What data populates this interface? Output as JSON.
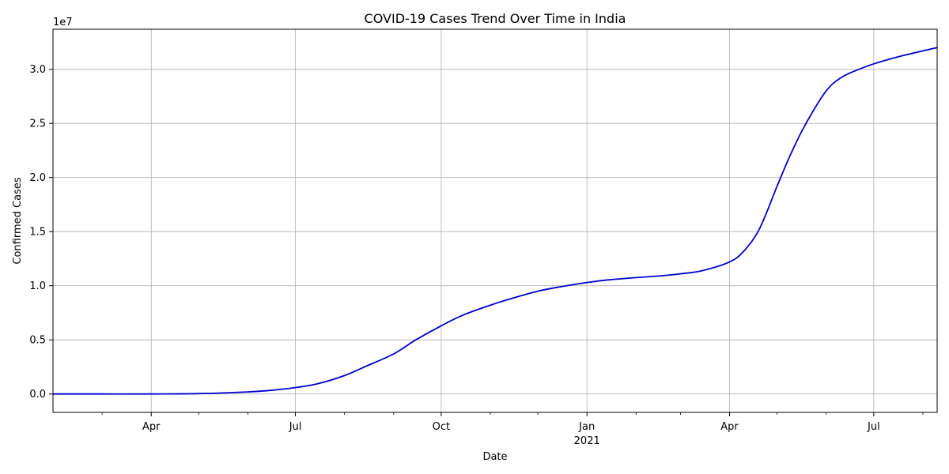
{
  "chart_data": {
    "type": "line",
    "title": "COVID-19 Cases Trend Over Time in India",
    "xlabel": "Date",
    "ylabel": "Confirmed Cases",
    "y_offset_label": "1e7",
    "ylim": [
      -1700000,
      33700000
    ],
    "xlim": [
      "2020-01-30",
      "2021-08-10"
    ],
    "grid": true,
    "line_color": "#0000cd",
    "x_ticks": [
      {
        "date": "2020-04-01",
        "label": "Apr",
        "sublabel": ""
      },
      {
        "date": "2020-07-01",
        "label": "Jul",
        "sublabel": ""
      },
      {
        "date": "2020-10-01",
        "label": "Oct",
        "sublabel": ""
      },
      {
        "date": "2021-01-01",
        "label": "Jan",
        "sublabel": "2021"
      },
      {
        "date": "2021-04-01",
        "label": "Apr",
        "sublabel": ""
      },
      {
        "date": "2021-07-01",
        "label": "Jul",
        "sublabel": ""
      }
    ],
    "x_minor_ticks": [
      "2020-03-01",
      "2020-05-01",
      "2020-06-01",
      "2020-08-01",
      "2020-09-01",
      "2020-11-01",
      "2020-12-01",
      "2021-02-01",
      "2021-03-01",
      "2021-05-01",
      "2021-06-01",
      "2021-08-01"
    ],
    "y_ticks": [
      {
        "value": 0,
        "label": "0.0"
      },
      {
        "value": 5000000,
        "label": "0.5"
      },
      {
        "value": 10000000,
        "label": "1.0"
      },
      {
        "value": 15000000,
        "label": "1.5"
      },
      {
        "value": 20000000,
        "label": "2.0"
      },
      {
        "value": 25000000,
        "label": "2.5"
      },
      {
        "value": 30000000,
        "label": "3.0"
      }
    ],
    "series": [
      {
        "x": [
          "2020-01-30",
          "2020-03-01",
          "2020-04-01",
          "2020-05-01",
          "2020-06-01",
          "2020-06-15",
          "2020-07-01",
          "2020-07-15",
          "2020-08-01",
          "2020-08-15",
          "2020-09-01",
          "2020-09-15",
          "2020-10-01",
          "2020-10-15",
          "2020-11-01",
          "2020-11-15",
          "2020-12-01",
          "2020-12-15",
          "2021-01-01",
          "2021-01-15",
          "2021-02-01",
          "2021-02-15",
          "2021-03-01",
          "2021-03-15",
          "2021-04-01",
          "2021-04-10",
          "2021-04-20",
          "2021-05-01",
          "2021-05-10",
          "2021-05-20",
          "2021-06-01",
          "2021-06-10",
          "2021-06-20",
          "2021-07-01",
          "2021-07-15",
          "2021-08-01",
          "2021-08-10"
        ],
        "y": [
          0,
          3000,
          2000,
          35000,
          190000,
          330000,
          590000,
          940000,
          1700000,
          2590000,
          3700000,
          5000000,
          6300000,
          7300000,
          8200000,
          8850000,
          9500000,
          9900000,
          10300000,
          10550000,
          10750000,
          10900000,
          11100000,
          11400000,
          12200000,
          13200000,
          15300000,
          19200000,
          22300000,
          25200000,
          28000000,
          29200000,
          29900000,
          30500000,
          31100000,
          31700000,
          32000000
        ]
      }
    ]
  }
}
